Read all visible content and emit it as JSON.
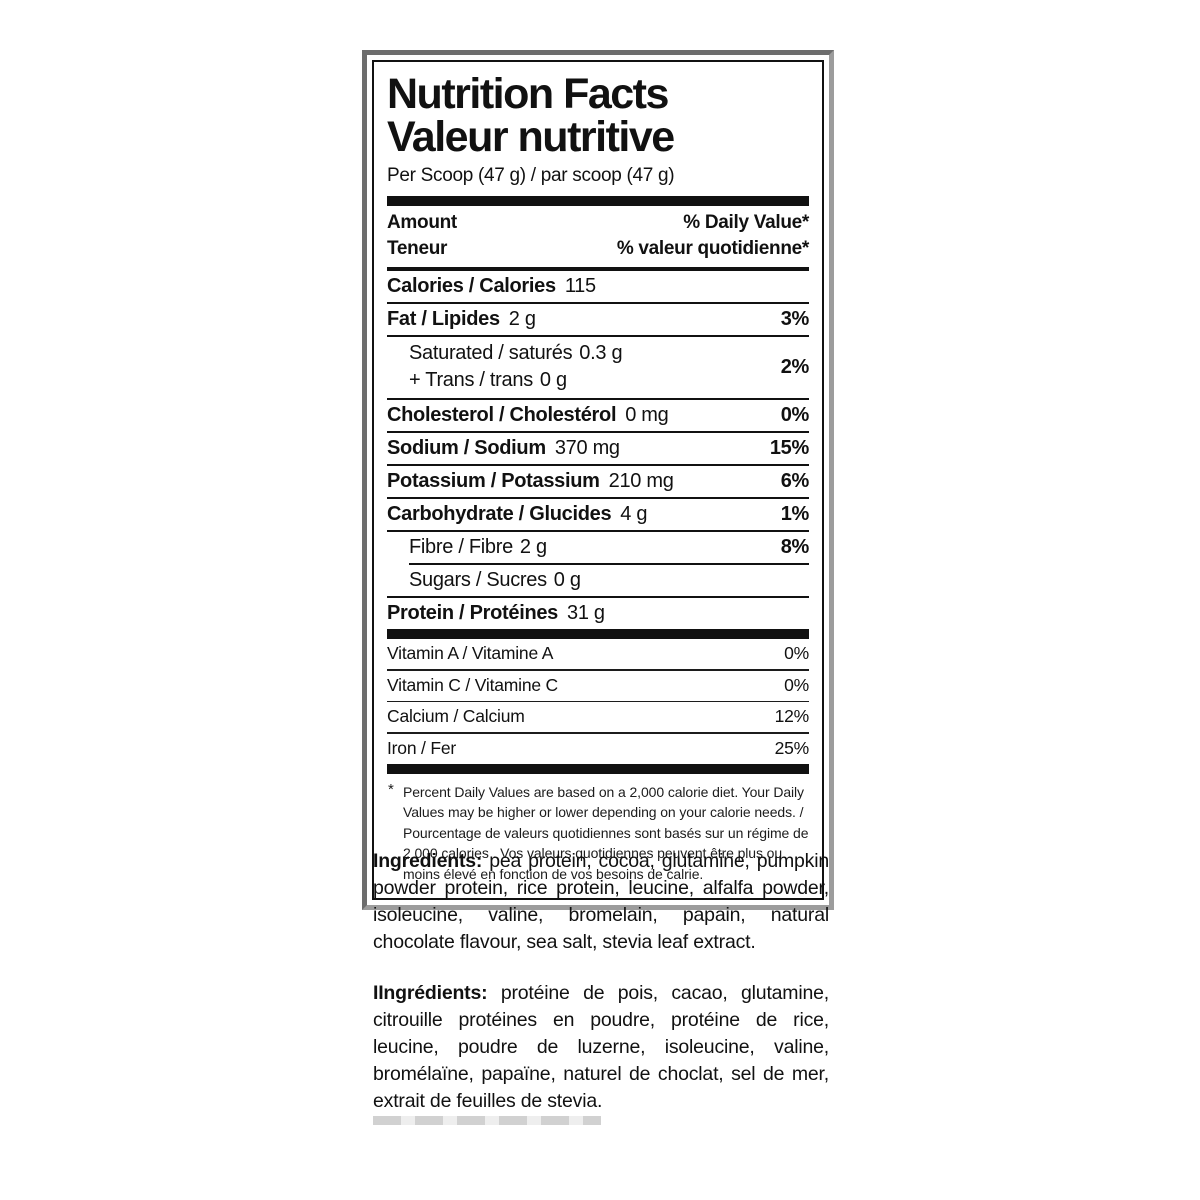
{
  "label": {
    "title_en": "Nutrition Facts",
    "title_fr": "Valeur nutritive",
    "serving": "Per Scoop (47 g) / par scoop (47 g)",
    "header": {
      "amount_en": "Amount",
      "amount_fr": "Teneur",
      "daily_value_en": "% Daily Value*",
      "daily_value_fr": "% valeur quotidienne*"
    },
    "rows": [
      {
        "name": "Calories / Calories",
        "value": "115",
        "dv": ""
      },
      {
        "name": "Fat / Lipides",
        "value": "2 g",
        "dv": "3%"
      },
      {
        "line1_name": "Saturated / saturés",
        "line1_value": "0.3 g",
        "line2_name": "+ Trans / trans",
        "line2_value": "0 g",
        "dv": "2%"
      },
      {
        "name": "Cholesterol / Cholestérol",
        "value": "0 mg",
        "dv": "0%"
      },
      {
        "name": "Sodium / Sodium",
        "value": "370 mg",
        "dv": "15%"
      },
      {
        "name": "Potassium / Potassium",
        "value": "210 mg",
        "dv": "6%"
      },
      {
        "name": "Carbohydrate / Glucides",
        "value": "4 g",
        "dv": "1%"
      },
      {
        "name": "Fibre / Fibre",
        "value": "2 g",
        "dv": "8%"
      },
      {
        "name": "Sugars / Sucres",
        "value": "0 g",
        "dv": ""
      },
      {
        "name": "Protein / Protéines",
        "value": "31 g",
        "dv": ""
      }
    ],
    "micronutrients": [
      {
        "name": "Vitamin A / Vitamine A",
        "dv": "0%"
      },
      {
        "name": "Vitamin C / Vitamine C",
        "dv": "0%"
      },
      {
        "name": "Calcium / Calcium",
        "dv": "12%"
      },
      {
        "name": "Iron / Fer",
        "dv": "25%"
      }
    ],
    "footnote_star": "*",
    "footnote": "Percent Daily Values are based on a 2,000 calorie diet. Your Daily Values may be higher or lower depending on your calorie needs. / Pourcentage de valeurs quotidiennes sont basés sur un régime de 2 000 calories . Vos valeurs quotidiennes peuvent être plus ou moins élevé en fonction de vos besoins de calrie."
  },
  "ingredients_en": {
    "label": "Ingredients:",
    "text": "pea protein, cocoa, glutamine, pumpkin powder protein, rice protein, leucine, alfalfa powder, isoleucine, valine, bromelain, papain, natural chocolate flavour, sea salt, stevia leaf extract."
  },
  "ingredients_fr": {
    "label": "IIngrédients:",
    "text": "protéine de pois, cacao, glutamine, citrouille protéines en poudre, protéine de rice, leucine, poudre de luzerne, isoleucine, valine, bromélaïne, papaïne, naturel de choclat, sel de mer, extrait de feuilles de stevia."
  },
  "colors": {
    "text": "#111111",
    "frame_gray": "#6d6d6d",
    "rule_black": "#111111"
  }
}
